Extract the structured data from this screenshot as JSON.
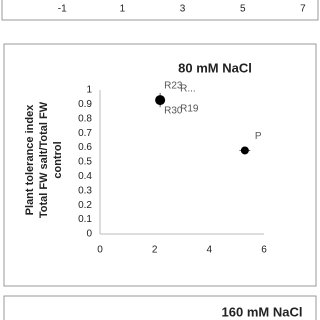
{
  "chart_data": [
    {
      "type": "scatter",
      "xlim": [
        -3,
        7.5
      ],
      "xticks": [
        -1,
        1,
        3,
        5,
        7
      ]
    },
    {
      "type": "scatter",
      "title": "80 mM NaCl",
      "ylabel": [
        "Plant tolerance index",
        "Total FW salt/Total FW",
        "control"
      ],
      "x": [
        2.2,
        5.3
      ],
      "values": [
        0.93,
        0.58
      ],
      "yerr": [
        0.05,
        0.02
      ],
      "xerr": [
        0.1,
        0.2
      ],
      "color": "#000000",
      "xlim": [
        0,
        6
      ],
      "xticks": [
        0,
        2,
        4,
        6
      ],
      "ylim": [
        0,
        1
      ],
      "yticks": [
        0,
        0.1,
        0.2,
        0.3,
        0.4,
        0.5,
        0.6,
        0.7,
        0.8,
        0.9,
        1
      ],
      "annotations": [
        "R23",
        "R...",
        "R19",
        "R30",
        "P"
      ]
    },
    {
      "type": "scatter",
      "title": "160 mM NaCl"
    }
  ]
}
